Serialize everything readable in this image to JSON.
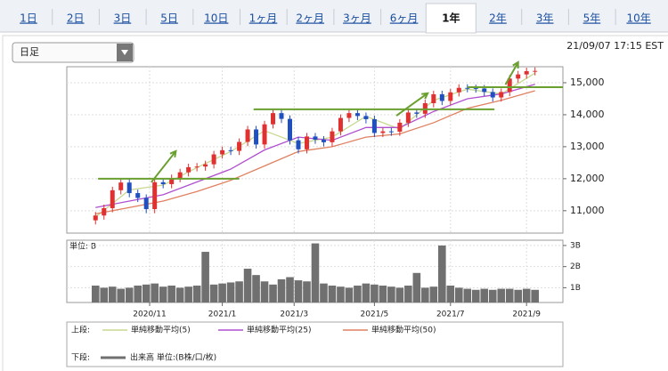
{
  "tabs": [
    "1日",
    "2日",
    "3日",
    "5日",
    "10日",
    "1ヶ月",
    "2ヶ月",
    "3ヶ月",
    "6ヶ月",
    "1年",
    "2年",
    "3年",
    "5年",
    "10年"
  ],
  "active_tab": 9,
  "dropdown": "日足",
  "timestamp": "21/09/07 17:15 EST",
  "legend": {
    "upper_label": "上段:",
    "lower_label": "下段:"
  },
  "chart_data": [
    {
      "type": "candlestick",
      "up_color": "#e03030",
      "down_color": "#2050c0",
      "xlim": [
        -3.4,
        55.3
      ],
      "ylim": [
        10300,
        15500
      ],
      "yticks": [
        {
          "value": 11000,
          "label": "11,000"
        },
        {
          "value": 12000,
          "label": "12,000"
        },
        {
          "value": 13000,
          "label": "13,000"
        },
        {
          "value": 14000,
          "label": "14,000"
        },
        {
          "value": 15000,
          "label": "15,000"
        }
      ],
      "grid": true,
      "ohlc": {
        "open": [
          10700,
          10850,
          11080,
          11640,
          11880,
          11550,
          11400,
          11050,
          11890,
          11830,
          12020,
          12200,
          12360,
          12380,
          12450,
          12760,
          12890,
          12870,
          13150,
          13540,
          13070,
          13700,
          14050,
          13870,
          13200,
          12920,
          13320,
          13220,
          13140,
          13480,
          13900,
          14050,
          13960,
          13860,
          13430,
          13480,
          13470,
          13750,
          14070,
          14030,
          14360,
          14640,
          14430,
          14700,
          14840,
          14830,
          14820,
          14710,
          14540,
          14710,
          15130,
          15260,
          15360
        ],
        "high": [
          10960,
          11190,
          11750,
          11990,
          11990,
          11660,
          11510,
          12000,
          12000,
          12130,
          12310,
          12470,
          12490,
          12560,
          12870,
          13000,
          13000,
          13260,
          13650,
          13650,
          13810,
          14160,
          14160,
          13980,
          13310,
          13430,
          13430,
          13330,
          13590,
          14010,
          14160,
          14160,
          14070,
          13970,
          13590,
          13590,
          13860,
          14180,
          14180,
          14470,
          14750,
          14750,
          14810,
          14950,
          14950,
          14940,
          14930,
          14820,
          14820,
          15240,
          15370,
          15470,
          15480
        ],
        "low": [
          10570,
          10720,
          10950,
          11510,
          11420,
          11270,
          10920,
          10920,
          11700,
          11700,
          11890,
          12070,
          12230,
          12250,
          12320,
          12630,
          12740,
          12740,
          13020,
          12940,
          12940,
          13570,
          13740,
          13070,
          12790,
          12790,
          13090,
          13010,
          13010,
          13350,
          13770,
          13830,
          13730,
          13300,
          13300,
          13340,
          13340,
          13620,
          13900,
          13900,
          14230,
          14300,
          14300,
          14570,
          14700,
          14690,
          14580,
          14410,
          14410,
          14580,
          15000,
          15130,
          15230
        ],
        "close": [
          10850,
          11080,
          11640,
          11880,
          11550,
          11400,
          11050,
          11890,
          11830,
          12020,
          12200,
          12360,
          12380,
          12450,
          12760,
          12890,
          12870,
          13150,
          13540,
          13070,
          13700,
          14050,
          13870,
          13200,
          12920,
          13320,
          13220,
          13140,
          13480,
          13900,
          14050,
          13960,
          13860,
          13430,
          13480,
          13470,
          13750,
          14070,
          14030,
          14360,
          14640,
          14430,
          14700,
          14840,
          14830,
          14820,
          14710,
          14540,
          14710,
          15130,
          15260,
          15360,
          15370
        ]
      },
      "series": [
        {
          "name": "単純移動平均(5)",
          "color": "#c8d890",
          "x": [
            0,
            4,
            8,
            12,
            16,
            20,
            24,
            28,
            32,
            36,
            40,
            44,
            48,
            52
          ],
          "values": [
            10800,
            11650,
            11800,
            12350,
            12850,
            13500,
            13100,
            13300,
            13950,
            13550,
            14450,
            14800,
            14650,
            15300
          ]
        },
        {
          "name": "単純移動平均(25)",
          "color": "#b050d0",
          "x": [
            0,
            4,
            8,
            12,
            16,
            20,
            24,
            28,
            32,
            36,
            40,
            44,
            48,
            52
          ],
          "values": [
            11100,
            11300,
            11500,
            11900,
            12300,
            12900,
            13300,
            13200,
            13600,
            13600,
            14100,
            14500,
            14650,
            14950
          ]
        },
        {
          "name": "単純移動平均(50)",
          "color": "#e08060",
          "x": [
            0,
            4,
            8,
            12,
            16,
            20,
            24,
            28,
            32,
            36,
            40,
            44,
            48,
            52
          ],
          "values": [
            10900,
            11100,
            11300,
            11600,
            11950,
            12400,
            12850,
            13000,
            13300,
            13400,
            13750,
            14200,
            14450,
            14750
          ]
        }
      ],
      "annotations": {
        "color": "#6aa030",
        "lines": [
          {
            "x": [
              0.3,
              17
            ],
            "y": 12000
          },
          {
            "x": [
              18.7,
              47.2
            ],
            "y": 14170
          },
          {
            "x": [
              44,
              55.3
            ],
            "y": 14860
          }
        ],
        "arrows": [
          {
            "from": [
              6.6,
              11890
            ],
            "to": [
              9.5,
              12860
            ]
          },
          {
            "from": [
              35.6,
              13970
            ],
            "to": [
              39.3,
              14670
            ]
          },
          {
            "from": [
              48.5,
              14940
            ],
            "to": [
              50,
              15640
            ]
          }
        ]
      }
    },
    {
      "type": "bar",
      "unit_label": "単位: B",
      "series": [
        {
          "name": "出来高 単位:(B株/口/枚)",
          "color": "#707070",
          "values": [
            1.1,
            1.0,
            1.05,
            0.95,
            1.0,
            1.1,
            1.15,
            1.2,
            1.05,
            1.1,
            1.0,
            1.05,
            1.1,
            2.7,
            1.15,
            1.2,
            1.25,
            1.3,
            1.9,
            1.6,
            1.3,
            1.15,
            1.4,
            1.5,
            1.35,
            1.3,
            3.1,
            1.2,
            1.1,
            1.05,
            1.0,
            1.1,
            1.2,
            1.15,
            1.1,
            1.05,
            1.0,
            1.1,
            1.7,
            1.0,
            1.05,
            3.0,
            1.1,
            1.0,
            0.95,
            0.9,
            0.95,
            0.9,
            0.95,
            0.95,
            0.9,
            0.95,
            0.9
          ]
        }
      ],
      "xlim": [
        -3.4,
        55.3
      ],
      "ylim": [
        0.3,
        3.25
      ],
      "yticks": [
        {
          "value": 1,
          "label": "1B"
        },
        {
          "value": 2,
          "label": "2B"
        },
        {
          "value": 3,
          "label": "3B"
        }
      ],
      "xticks": [
        {
          "value": 6.4,
          "label": "2020/11"
        },
        {
          "value": 15,
          "label": "2021/1"
        },
        {
          "value": 23.5,
          "label": "2021/3"
        },
        {
          "value": 33,
          "label": "2021/5"
        },
        {
          "value": 42,
          "label": "2021/7"
        },
        {
          "value": 51,
          "label": "2021/9"
        }
      ],
      "grid": true
    }
  ]
}
